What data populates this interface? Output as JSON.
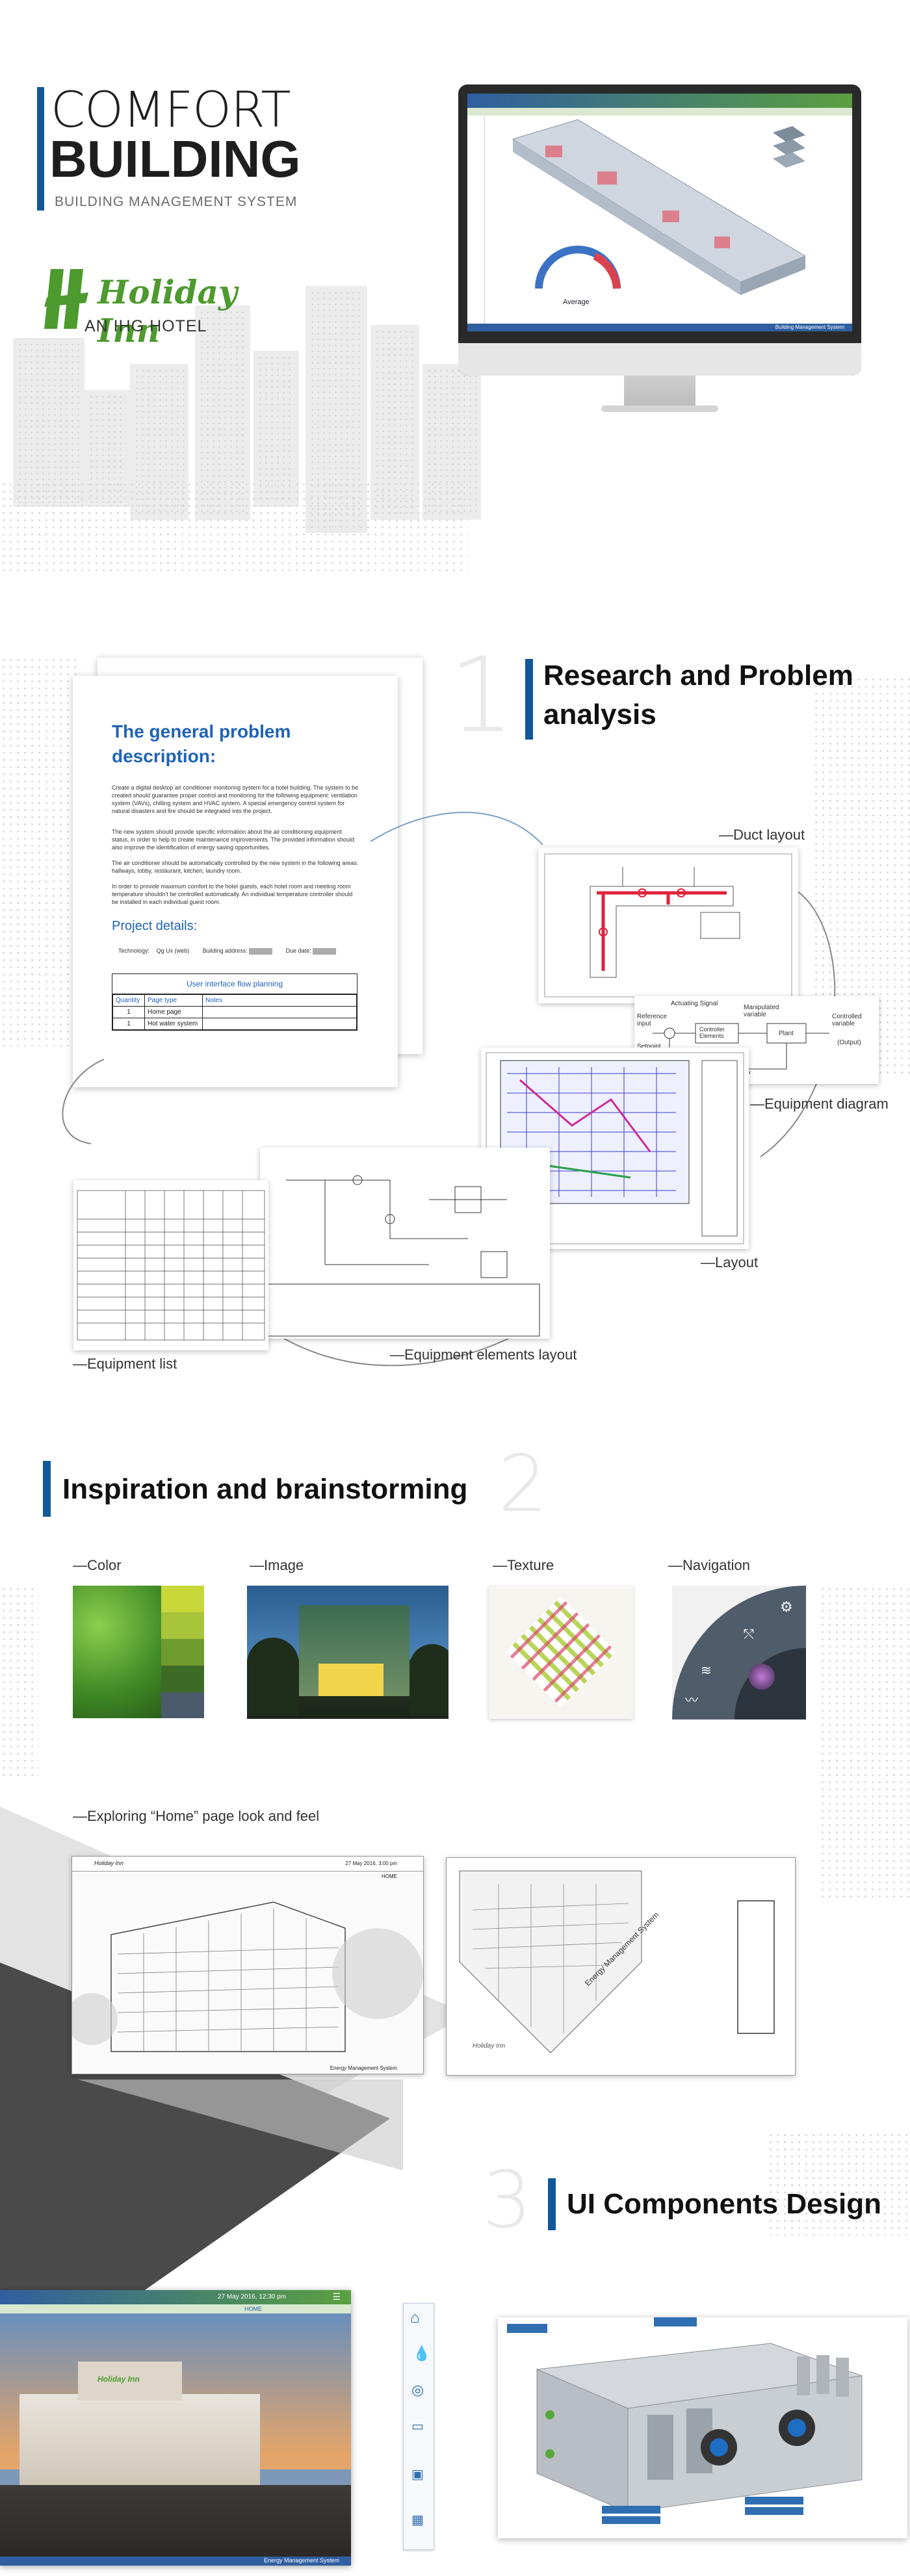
{
  "hero": {
    "title_line1": "COMFORT",
    "title_line2": "BUILDING",
    "subtitle": "BUILDING MANAGEMENT SYSTEM",
    "brand_name": "Holiday Inn",
    "brand_tagline": "AN IHG HOTEL",
    "monitor_gauge_label": "Average",
    "monitor_footer": "Building Management System"
  },
  "section1": {
    "number": "1",
    "title_line1": "Research and Problem",
    "title_line2": "analysis",
    "doc_heading_line1": "The general problem",
    "doc_heading_line2": "description:",
    "doc_p1": "Create a digital desktop air conditioner monitoring system for a hotel building. The system to be created should guarantee proper control and monitoring for the following equipment: ventilation system (VAVs), chilling system and HVAC system. A special emergency control system for natural disasters and fire should be integrated into the project.",
    "doc_p2": "The new system should provide specific information about the air conditioning equipment status, in order to help to create maintenance improvements. The provided information should also improve the identification of energy saving opportunities.",
    "doc_p3": "The air conditioner should be automatically controlled by the new system in the following areas: hallways, lobby, restaurant, kitchen, laundry room.",
    "doc_p4": "In order to provide maximum comfort to the hotel guests, each hotel room and meeting room temperature shouldn't be controlled automatically. An individual temperature controller should be installed in each individual guest room.",
    "project_details": "Project details:",
    "tech_label": "Technology:",
    "tech_value": "Qg Ux (web)",
    "address_label": "Building address:",
    "due_label": "Due date:",
    "flow_title": "User interface flow planning",
    "flow_headers": [
      "Quantity",
      "Page type",
      "Notes"
    ],
    "flow_rows": [
      [
        "1",
        "Home page",
        ""
      ],
      [
        "1",
        "Hot water system",
        ""
      ]
    ],
    "label_duct": "—Duct layout",
    "label_equipment_diagram": "—Equipment diagram",
    "label_layout": "—Layout",
    "label_equipment_list": "—Equipment list",
    "label_equipment_elements": "—Equipment elements layout",
    "diagram_labels": [
      "Actuating Signal",
      "Manipulated variable",
      "Reference input",
      "Controller Elements",
      "Plant",
      "Controlled variable",
      "(Output)",
      "Setpoint",
      "edback ments"
    ]
  },
  "section2": {
    "number": "2",
    "title": "Inspiration and brainstorming",
    "label_color": "—Color",
    "label_image": "—Image",
    "label_texture": "—Texture",
    "label_navigation": "—Navigation",
    "swatches": [
      "#c8d83b",
      "#a7c43a",
      "#6f9a2e",
      "#3d6b26",
      "#4a5a6a"
    ],
    "label_exploring": "—Exploring “Home” page look and feel",
    "sketch_footer": "Energy Management System",
    "sketch_date": "27 May 2016, 3:00 pm",
    "sketch_home": "HOME",
    "sketch_diag_text": "Energy Management System"
  },
  "section3": {
    "number": "3",
    "title": "UI Components Design",
    "home_date": "27 May 2016, 12:30 pm",
    "home_label": "HOME",
    "home_footer": "Energy Management System",
    "brand_small": "Holiday Inn"
  },
  "colors": {
    "accent": "#11589a",
    "brand_green": "#4d9a2e",
    "text_dark": "#1b1b1b"
  }
}
